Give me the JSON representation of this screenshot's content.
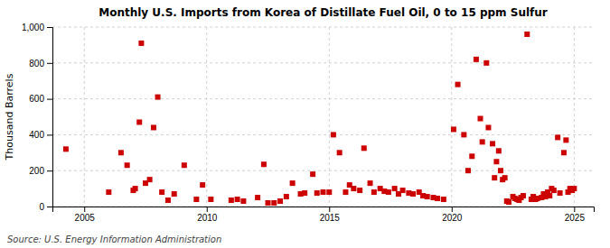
{
  "chart_data": {
    "type": "scatter",
    "title": "Monthly U.S. Imports from Korea of Distillate Fuel Oil, 0 to 15 ppm Sulfur",
    "ylabel": "Thousand Barrels",
    "source": "Source: U.S. Energy Information Administration",
    "color": "#cc0000",
    "marker": "square",
    "grid": true,
    "xlim": [
      2003.7,
      2025.8
    ],
    "xticks": [
      2005,
      2010,
      2015,
      2020,
      2025
    ],
    "ylim": [
      0,
      1000
    ],
    "yticks": [
      0,
      200,
      400,
      600,
      800,
      {
        "value": 1000,
        "label": "1,000"
      }
    ],
    "x": [
      2004.25,
      2006.0,
      2006.5,
      2006.75,
      2007.0,
      2007.08,
      2007.25,
      2007.33,
      2007.5,
      2007.67,
      2007.83,
      2008.0,
      2008.17,
      2008.42,
      2008.67,
      2009.08,
      2009.58,
      2009.83,
      2010.17,
      2011.0,
      2011.25,
      2011.5,
      2012.08,
      2012.33,
      2012.5,
      2012.75,
      2013.0,
      2013.25,
      2013.5,
      2013.83,
      2014.0,
      2014.33,
      2014.5,
      2014.75,
      2015.0,
      2015.17,
      2015.42,
      2015.67,
      2015.83,
      2016.0,
      2016.25,
      2016.42,
      2016.67,
      2016.83,
      2017.08,
      2017.25,
      2017.42,
      2017.67,
      2017.83,
      2018.0,
      2018.25,
      2018.42,
      2018.67,
      2018.83,
      2019.0,
      2019.25,
      2019.42,
      2019.67,
      2020.08,
      2020.25,
      2020.5,
      2020.67,
      2020.83,
      2021.0,
      2021.17,
      2021.25,
      2021.42,
      2021.5,
      2021.67,
      2021.75,
      2021.83,
      2021.92,
      2022.0,
      2022.08,
      2022.17,
      2022.25,
      2022.33,
      2022.5,
      2022.58,
      2022.67,
      2022.75,
      2022.83,
      2022.92,
      2023.08,
      2023.25,
      2023.33,
      2023.42,
      2023.5,
      2023.67,
      2023.75,
      2023.83,
      2023.92,
      2024.0,
      2024.08,
      2024.17,
      2024.33,
      2024.42,
      2024.58,
      2024.67,
      2024.75,
      2024.83,
      2024.92,
      2025.0
    ],
    "values": [
      320,
      80,
      300,
      230,
      90,
      100,
      470,
      910,
      130,
      150,
      440,
      610,
      80,
      35,
      70,
      230,
      40,
      120,
      40,
      35,
      40,
      30,
      50,
      235,
      20,
      20,
      30,
      55,
      130,
      70,
      75,
      180,
      75,
      80,
      80,
      400,
      300,
      80,
      120,
      100,
      90,
      325,
      130,
      80,
      100,
      85,
      80,
      100,
      70,
      90,
      75,
      70,
      80,
      60,
      55,
      50,
      45,
      40,
      430,
      680,
      400,
      200,
      280,
      820,
      490,
      360,
      800,
      440,
      350,
      160,
      250,
      310,
      200,
      150,
      160,
      30,
      25,
      55,
      45,
      40,
      35,
      50,
      60,
      960,
      40,
      55,
      40,
      45,
      50,
      70,
      55,
      80,
      60,
      100,
      90,
      385,
      75,
      300,
      370,
      80,
      100,
      90,
      100
    ]
  }
}
